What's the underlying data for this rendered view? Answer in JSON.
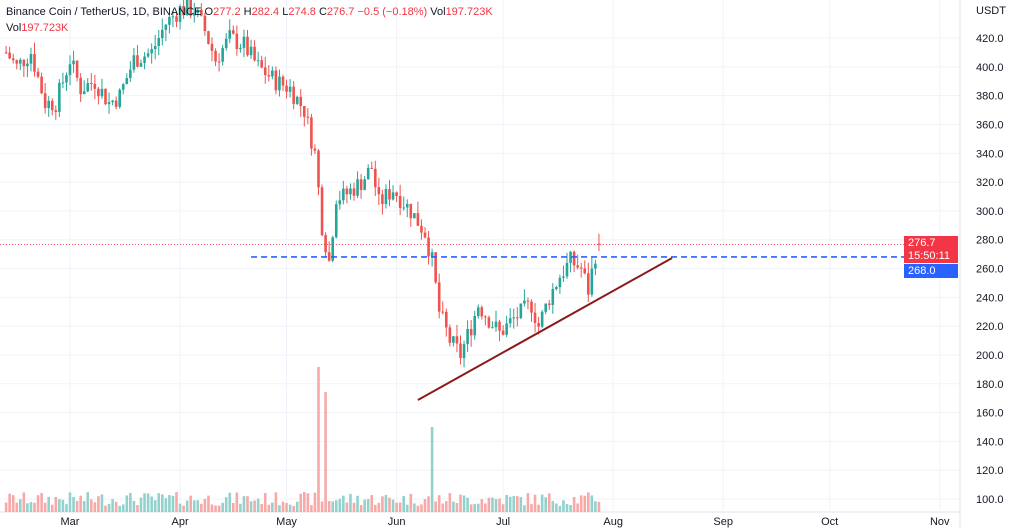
{
  "legend": {
    "symbol": "Binance Coin / TetherUS, 1D, BINANCE",
    "o_label": "O",
    "o": "277.2",
    "h_label": "H",
    "h": "282.4",
    "l_label": "L",
    "l": "274.8",
    "c_label": "C",
    "c": "276.7",
    "change": "−0.5 (−0.18%)",
    "vol_label": "Vol",
    "vol": "197.723K"
  },
  "volume_legend": {
    "label": "Vol",
    "value": "197.723K"
  },
  "price_axis": {
    "currency": "USDT",
    "ticks": [
      "100.0",
      "120.0",
      "140.0",
      "160.0",
      "180.0",
      "200.0",
      "220.0",
      "240.0",
      "260.0",
      "280.0",
      "300.0",
      "320.0",
      "340.0",
      "360.0",
      "380.0",
      "400.0",
      "420.0"
    ]
  },
  "time_axis": {
    "ticks": [
      "Mar",
      "Apr",
      "May",
      "Jun",
      "Jul",
      "Aug",
      "Sep",
      "Oct",
      "Nov"
    ]
  },
  "tags": {
    "last_price": "276.7",
    "countdown": "15:50:11",
    "level": "268.0"
  },
  "colors": {
    "up": "#26a69a",
    "down": "#ef5350",
    "line": "#8b1a1a",
    "dash": "#2962ff",
    "tag_red": "#f23645",
    "tag_blue": "#2962ff"
  },
  "chart_data": {
    "type": "candlestick",
    "note": "day = days from Mar 1; close waypoints",
    "closes": [
      [
        -18,
        410
      ],
      [
        -15,
        400
      ],
      [
        -11,
        410
      ],
      [
        -7,
        375
      ],
      [
        -4,
        375
      ],
      [
        0,
        405
      ],
      [
        3,
        385
      ],
      [
        7,
        390
      ],
      [
        11,
        375
      ],
      [
        14,
        380
      ],
      [
        18,
        405
      ],
      [
        23,
        410
      ],
      [
        27,
        430
      ],
      [
        31,
        440
      ],
      [
        35,
        440
      ],
      [
        38,
        425
      ],
      [
        41,
        405
      ],
      [
        45,
        420
      ],
      [
        49,
        415
      ],
      [
        53,
        400
      ],
      [
        58,
        390
      ],
      [
        62,
        385
      ],
      [
        66,
        370
      ],
      [
        69,
        340
      ],
      [
        71,
        290
      ],
      [
        73,
        265
      ],
      [
        75,
        310
      ],
      [
        77,
        310
      ],
      [
        82,
        320
      ],
      [
        85,
        330
      ],
      [
        87,
        305
      ],
      [
        91,
        315
      ],
      [
        96,
        300
      ],
      [
        100,
        285
      ],
      [
        102,
        265
      ],
      [
        104,
        230
      ],
      [
        107,
        210
      ],
      [
        110,
        200
      ],
      [
        113,
        220
      ],
      [
        115,
        235
      ],
      [
        118,
        225
      ],
      [
        121,
        215
      ],
      [
        125,
        225
      ],
      [
        130,
        235
      ],
      [
        132,
        220
      ],
      [
        135,
        240
      ],
      [
        138,
        255
      ],
      [
        141,
        265
      ],
      [
        144,
        260
      ],
      [
        146,
        245
      ],
      [
        148,
        270
      ],
      [
        149,
        276.7
      ]
    ],
    "volume_spikes": [
      [
        70,
        145
      ],
      [
        102,
        85
      ],
      [
        72,
        120
      ]
    ],
    "trendline": [
      [
        98,
        168.7
      ],
      [
        169.6,
        267.3
      ]
    ],
    "horizontal_level": 268.0,
    "last_price": 276.7,
    "ylim": [
      90,
      440
    ]
  }
}
